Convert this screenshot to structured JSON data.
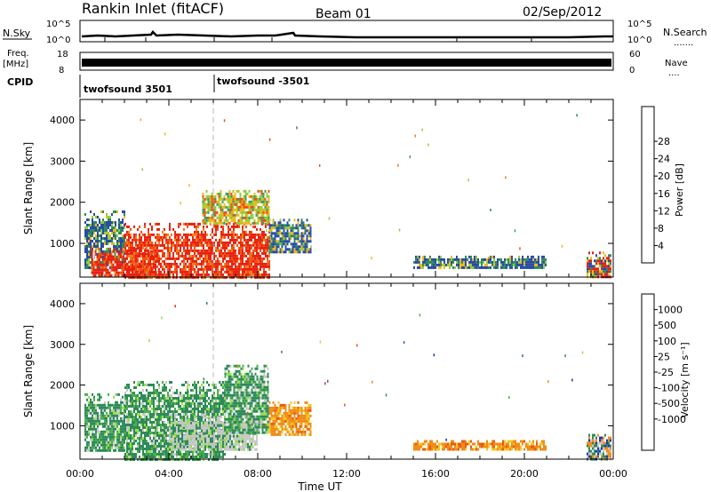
{
  "header": {
    "station": "Rankin Inlet (fitACF)",
    "beam": "Beam 01",
    "date": "02/Sep/2012"
  },
  "top_panels": {
    "nsky_label": "N.Sky",
    "nsky_ticks": [
      "10^5",
      "10^0"
    ],
    "nsearch_label": "N.Search",
    "nsearch_ticks": [
      "10^5",
      "10^0"
    ],
    "freq_label": "Freq.",
    "freq_unit": "[MHz]",
    "freq_ticks": [
      "18",
      "8"
    ],
    "nave_label": "Nave",
    "nave_ticks": [
      "60",
      "0"
    ],
    "cpid_label": "CPID",
    "cpid_segments": [
      {
        "name": "twofsound 3501",
        "start_hour": 0
      },
      {
        "name": "twofsound -3501",
        "start_hour": 6
      }
    ]
  },
  "colors": {
    "power_scale": [
      "#1010e8",
      "#2a4aa8",
      "#2e8a5a",
      "#3f9a6a",
      "#8fce3a",
      "#f0b818",
      "#f08018",
      "#f05010",
      "#e82010"
    ],
    "velocity_scale": [
      "#1a3ab0",
      "#2a6aa8",
      "#2e8a5a",
      "#4ab04a",
      "#9ae04a",
      "#c8c8c8",
      "#f0c820",
      "#f08c18",
      "#e85818",
      "#e82818"
    ]
  },
  "chart_data": [
    {
      "type": "heatmap",
      "title": "Power",
      "xlabel": "",
      "ylabel": "Slant Range [km]",
      "x_tick_labels": [
        "00:00",
        "04:00",
        "08:00",
        "12:00",
        "16:00",
        "20:00",
        "00:00"
      ],
      "xlim": [
        0,
        24
      ],
      "ylim": [
        180,
        4500
      ],
      "y_ticks": [
        1000,
        2000,
        3000,
        4000
      ],
      "colorbar_label": "Power [dB]",
      "colorbar_ticks": [
        "4",
        "8",
        "12",
        "16",
        "20",
        "24",
        "28"
      ],
      "regions": [
        {
          "x": [
            0.2,
            2.0
          ],
          "y": [
            400,
            1800
          ],
          "value": "weak"
        },
        {
          "x": [
            0.5,
            3.5
          ],
          "y": [
            200,
            900
          ],
          "value": "strong"
        },
        {
          "x": [
            2.0,
            8.5
          ],
          "y": [
            200,
            1500
          ],
          "value": "strong"
        },
        {
          "x": [
            5.5,
            8.5
          ],
          "y": [
            1500,
            2300
          ],
          "value": "medium"
        },
        {
          "x": [
            8.5,
            10.4
          ],
          "y": [
            800,
            1600
          ],
          "value": "weak"
        },
        {
          "x": [
            15.0,
            21.0
          ],
          "y": [
            400,
            700
          ],
          "value": "weak"
        },
        {
          "x": [
            22.8,
            23.9
          ],
          "y": [
            200,
            800
          ],
          "value": "mixed"
        }
      ]
    },
    {
      "type": "heatmap",
      "title": "Velocity",
      "xlabel": "Time UT",
      "ylabel": "Slant Range [km]",
      "x_tick_labels": [
        "00:00",
        "04:00",
        "08:00",
        "12:00",
        "16:00",
        "20:00",
        "00:00"
      ],
      "xlim": [
        0,
        24
      ],
      "ylim": [
        180,
        4500
      ],
      "y_ticks": [
        1000,
        2000,
        3000,
        4000
      ],
      "colorbar_label": "Velocity [m s⁻¹]",
      "colorbar_ticks": [
        "1000",
        "500",
        "100",
        "25",
        "-25",
        "-100",
        "-500",
        "-1000"
      ],
      "regions": [
        {
          "x": [
            0.2,
            2.0
          ],
          "y": [
            400,
            1800
          ],
          "value": "green"
        },
        {
          "x": [
            2.0,
            6.5
          ],
          "y": [
            200,
            2100
          ],
          "value": "green"
        },
        {
          "x": [
            4.0,
            8.0
          ],
          "y": [
            400,
            1300
          ],
          "value": "grey"
        },
        {
          "x": [
            6.5,
            8.5
          ],
          "y": [
            800,
            2500
          ],
          "value": "green"
        },
        {
          "x": [
            8.5,
            10.4
          ],
          "y": [
            800,
            1600
          ],
          "value": "orange"
        },
        {
          "x": [
            15.0,
            21.0
          ],
          "y": [
            400,
            650
          ],
          "value": "orange"
        },
        {
          "x": [
            22.8,
            23.9
          ],
          "y": [
            200,
            800
          ],
          "value": "mixed"
        }
      ]
    }
  ]
}
